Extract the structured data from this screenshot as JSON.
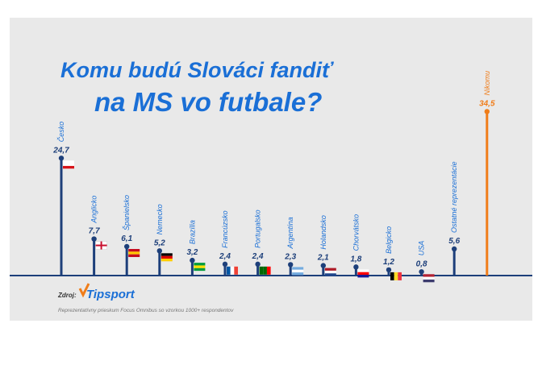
{
  "chart_data": {
    "type": "lollipop",
    "title": [
      "Komu budú Slováci fandiť",
      "na MS vo futbale?"
    ],
    "categories": [
      "Česko",
      "Anglicko",
      "Španielsko",
      "Nemecko",
      "Brazília",
      "Francúzsko",
      "Portugalsko",
      "Argentína",
      "Holandsko",
      "Chorvátsko",
      "Belgicko",
      "USA",
      "Ostatné reprezentácie",
      "Nikomu"
    ],
    "values": [
      24.7,
      7.7,
      6.1,
      5.2,
      3.2,
      2.4,
      2.4,
      2.3,
      2.1,
      1.8,
      1.2,
      0.8,
      5.6,
      34.5
    ],
    "value_labels": [
      "24,7",
      "7,7",
      "6,1",
      "5,2",
      "3,2",
      "2,4",
      "2,4",
      "2,3",
      "2,1",
      "1,8",
      "1,2",
      "0,8",
      "5,6",
      "34,5"
    ],
    "colors": [
      "#1d3f7a",
      "#1d3f7a",
      "#1d3f7a",
      "#1d3f7a",
      "#1d3f7a",
      "#1d3f7a",
      "#1d3f7a",
      "#1d3f7a",
      "#1d3f7a",
      "#1d3f7a",
      "#1d3f7a",
      "#1d3f7a",
      "#1d3f7a",
      "#f07d1a"
    ],
    "label_colors": [
      "#1a6fd6",
      "#1a6fd6",
      "#1a6fd6",
      "#1a6fd6",
      "#1a6fd6",
      "#1a6fd6",
      "#1a6fd6",
      "#1a6fd6",
      "#1a6fd6",
      "#1a6fd6",
      "#1a6fd6",
      "#1a6fd6",
      "#1a6fd6",
      "#f07d1a"
    ],
    "ylim": [
      0,
      40
    ],
    "source_label": "Zdroj:",
    "source": "Tipsport",
    "note": "Reprezentatívny prieskum Focus Omnibus so vzorkou 1000+ respondentov"
  }
}
